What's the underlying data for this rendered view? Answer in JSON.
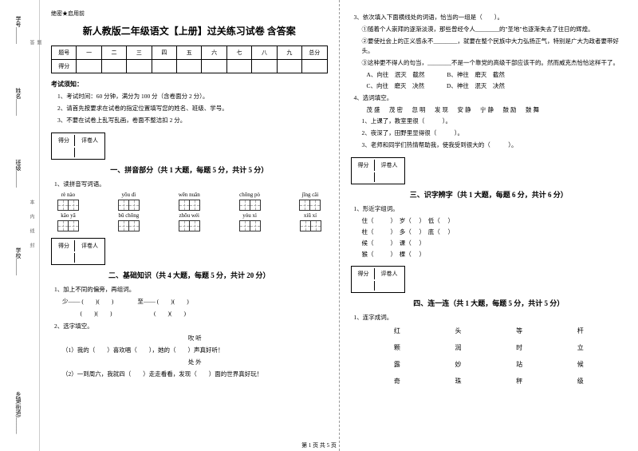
{
  "spine": {
    "l1": "学号______",
    "l2": "姓名______",
    "l3": "班级______",
    "l4": "学校______",
    "l5": "乡镇(街道)______",
    "cut1": "题",
    "cut2": "答",
    "mid1": "本",
    "mid2": "内",
    "mid3": "线",
    "mid4": "封"
  },
  "header": {
    "badge": "绝密★启用前",
    "title": "新人教版二年级语文【上册】过关练习试卷 含答案"
  },
  "scoreTable": {
    "r1": [
      "题号",
      "一",
      "二",
      "三",
      "四",
      "五",
      "六",
      "七",
      "八",
      "九",
      "总分"
    ],
    "r2": [
      "得分",
      "",
      "",
      "",
      "",
      "",
      "",
      "",
      "",
      "",
      ""
    ]
  },
  "rules": {
    "h": "考试须知：",
    "r1": "1、考试时间：60 分钟，满分为 100 分（含卷面分 2 分）。",
    "r2": "2、请首先按要求在试卷的指定位置填写您的姓名、班级、学号。",
    "r3": "3、不要在试卷上乱写乱画，卷面不整洁扣 2 分。"
  },
  "scorebox": {
    "c1": "得分",
    "c2": "评卷人"
  },
  "part1": {
    "title": "一、拼音部分（共 1 大题，每题 5 分，共计 5 分）",
    "q1": "1、读拼音写词语。",
    "row1": [
      "rè nào",
      "yōu dì",
      "wēn nuǎn",
      "chōng pò",
      "jīng cǎi"
    ],
    "row2": [
      "kǎo yā",
      "bǔ chōng",
      "zhōu wéi",
      "yóu xì",
      "xiū xí"
    ]
  },
  "part2": {
    "title": "二、基础知识（共 4 大题，每题 5 分，共计 20 分）",
    "q1": "1、加上不同的偏旁，再组词。",
    "l1": "少—— (　　)(　　)　　　　至—— (　　)(　　)",
    "l2": "　　　(　　)(　　)　　　　　　　(　　)(　　)",
    "q2": "2、选字填空。",
    "l3": "吹 听",
    "l4": "（1）我的（　　）喜欢唱（　　），她的（　　）声真好听！",
    "l5": "处 外",
    "l6": "（2）一到周六，我就四（　　）走走看看，发现（　　）面的世界真好玩！"
  },
  "right": {
    "q3": "3、依次填入下面横线处的词语，恰当的一组是（　　）。",
    "q3a": "①随着个人崇拜的逐渐淡漠，那些曾经令人________的\"圣地\"也逐渐失去了往日的辉煌。",
    "q3b": "②要使社会上的正义感永不________，就要在整个民族中大力弘扬正气，特别是广大为政者要带好头。",
    "q3c": "③这种更不得人的句当，________不是一个靠党的高级干部应该干的。然而威克杰恰恰这样干了。",
    "choices": {
      "a": "A、向往　泯灭　截然",
      "b": "B、神往　磨灭　截然",
      "c": "C、向往　磨灭　决然",
      "d": "D、神往　泯灭　决然"
    },
    "q4": "4、选词填空。",
    "words": "茂盛　茂密　忽明　发现　安静　宁静　鼓励　鼓舞",
    "q4a": "1、上课了，教室里很（　　　）。",
    "q4b": "2、夜深了，田野里显得很（　　　）。",
    "q4c": "3、老师和同学们热情帮助我，使我受到很大的（　　　）。"
  },
  "part3": {
    "title": "三、识字辨字（共 1 大题，每题 6 分，共计 6 分）",
    "q1": "1、形近字组词。",
    "rows": [
      [
        "住（",
        "）　岁（",
        "）　低（",
        "）"
      ],
      [
        "柱（",
        "）　多（",
        "）　底（",
        "）"
      ],
      [
        "候（",
        "）　课（",
        "）",
        "　"
      ],
      [
        "猴（",
        "）　棵（",
        "）",
        "　"
      ]
    ]
  },
  "part4": {
    "title": "四、连一连（共 1 大题，每题 5 分，共计 5 分）",
    "q1": "1、连字成词。",
    "cols": [
      [
        "红",
        "颗",
        "露",
        "奇"
      ],
      [
        "头",
        "润",
        "妙",
        "珠"
      ],
      [
        "等",
        "时",
        "站",
        "秤"
      ],
      [
        "杆",
        "立",
        "候",
        "级"
      ]
    ]
  },
  "footer": "第 1 页 共 5 页"
}
